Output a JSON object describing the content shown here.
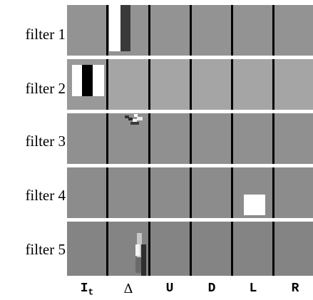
{
  "rows": [
    {
      "label": "filter 1",
      "bg": "#939393"
    },
    {
      "label": "filter 2",
      "bg": "#a5a5a5"
    },
    {
      "label": "filter 3",
      "bg": "#909090"
    },
    {
      "label": "filter 4",
      "bg": "#8c8c8c"
    },
    {
      "label": "filter 5",
      "bg": "#848484"
    }
  ],
  "columns": [
    {
      "label": "I",
      "sub": "t"
    },
    {
      "label": "Δ"
    },
    {
      "label": "U"
    },
    {
      "label": "D"
    },
    {
      "label": "L"
    },
    {
      "label": "R"
    }
  ],
  "colors": {
    "white": "#ffffff",
    "black": "#000000",
    "dark": "#3a3a3a"
  }
}
